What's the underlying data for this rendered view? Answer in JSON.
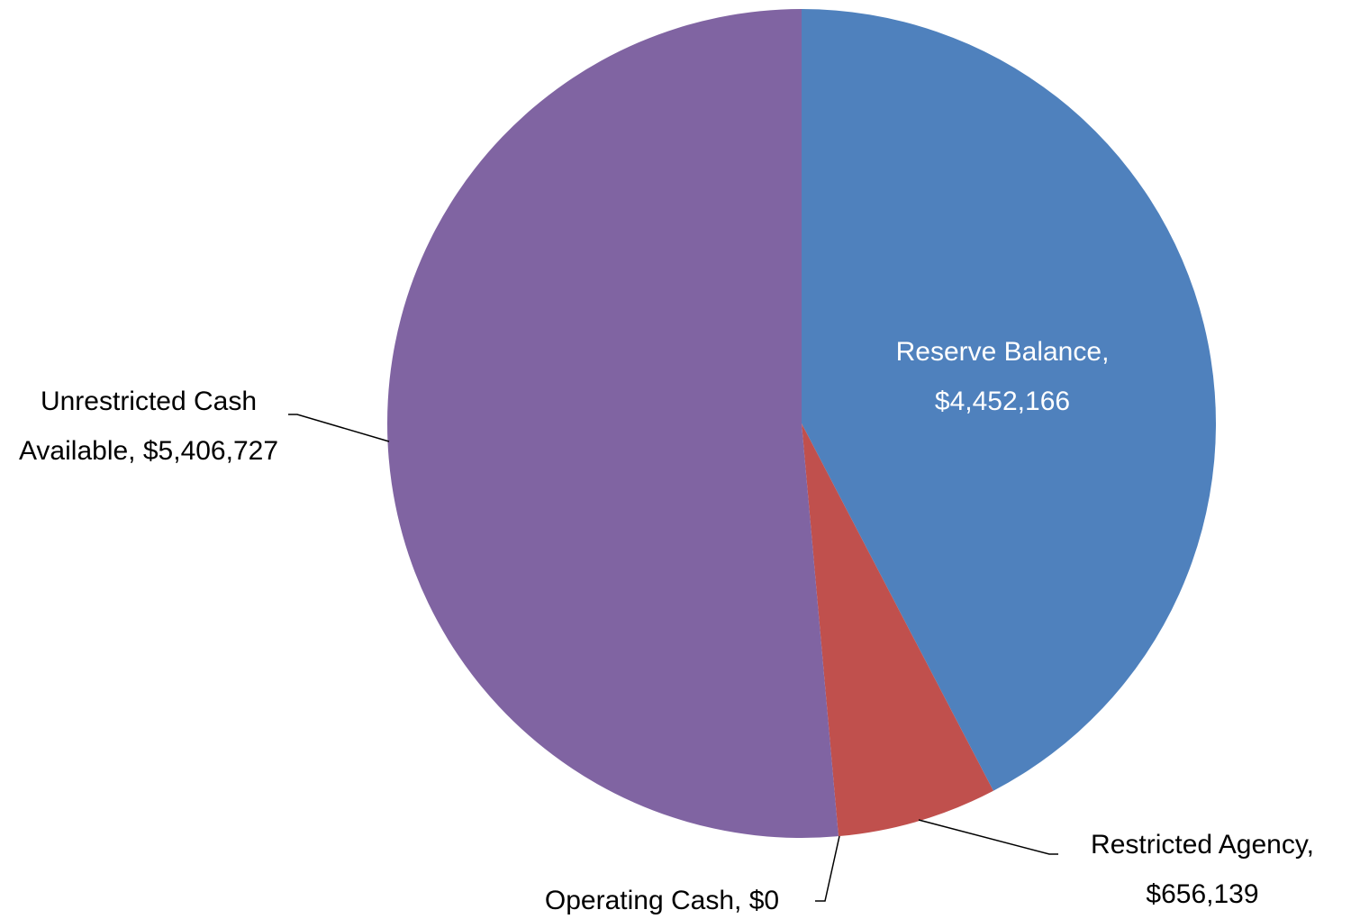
{
  "chart_data": {
    "type": "pie",
    "categories": [
      "Reserve Balance",
      "Restricted Agency",
      "Operating Cash",
      "Unrestricted Cash Available"
    ],
    "values": [
      4452166,
      656139,
      0,
      5406727
    ],
    "value_labels": [
      "$4,452,166",
      "$656,139",
      "$0",
      "$5,406,727"
    ],
    "label_separator": ",",
    "colors": [
      "#4f81bd",
      "#c0504d",
      "#9bbb59",
      "#8064a2"
    ]
  }
}
